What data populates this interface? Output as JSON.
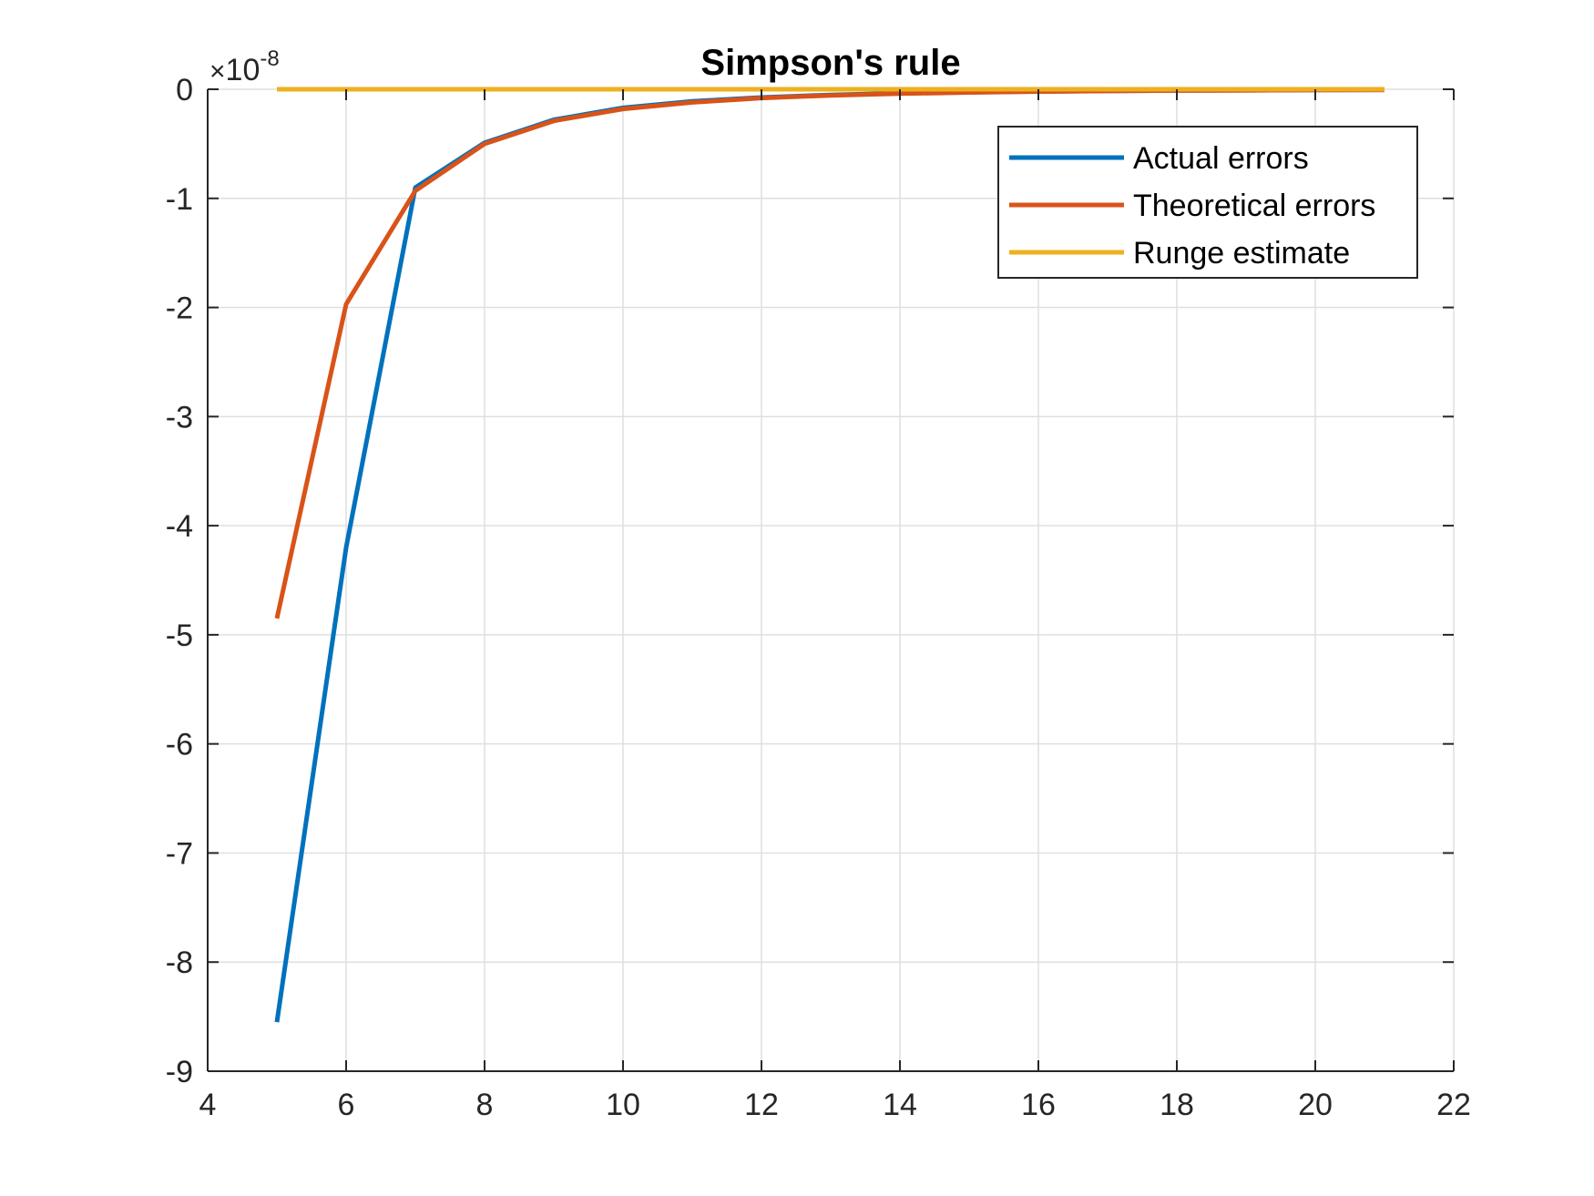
{
  "chart_data": {
    "type": "line",
    "title": "Simpson's rule",
    "xlabel": "",
    "ylabel": "",
    "y_multiplier": {
      "base": "10",
      "exponent": "-8"
    },
    "xlim": [
      4,
      22
    ],
    "ylim": [
      -9,
      0
    ],
    "xticks": [
      "4",
      "6",
      "8",
      "10",
      "12",
      "14",
      "16",
      "18",
      "20",
      "22"
    ],
    "yticks": [
      "-9",
      "-8",
      "-7",
      "-6",
      "-5",
      "-4",
      "-3",
      "-2",
      "-1",
      "0"
    ],
    "grid": true,
    "legend_position": "top-right",
    "series": [
      {
        "name": "Actual errors",
        "color": "#0072BD",
        "x": [
          5,
          6,
          7,
          8,
          9,
          10,
          11,
          12,
          13,
          14,
          15,
          16,
          17,
          18,
          19,
          20,
          21
        ],
        "y": [
          -8.55,
          -4.2,
          -0.9,
          -0.49,
          -0.28,
          -0.17,
          -0.11,
          -0.075,
          -0.052,
          -0.037,
          -0.027,
          -0.02,
          -0.015,
          -0.011,
          -0.009,
          -0.007,
          -0.005
        ]
      },
      {
        "name": "Theoretical errors",
        "color": "#D95319",
        "x": [
          5,
          6,
          7,
          8,
          9,
          10,
          11,
          12,
          13,
          14,
          15,
          16,
          17,
          18,
          19,
          20,
          21
        ],
        "y": [
          -4.85,
          -1.97,
          -0.93,
          -0.5,
          -0.29,
          -0.18,
          -0.12,
          -0.08,
          -0.056,
          -0.04,
          -0.029,
          -0.021,
          -0.016,
          -0.012,
          -0.009,
          -0.007,
          -0.005
        ]
      },
      {
        "name": "Runge estimate",
        "color": "#EDB120",
        "x": [
          5,
          6,
          7,
          8,
          9,
          10,
          11,
          12,
          13,
          14,
          15,
          16,
          17,
          18,
          19,
          20,
          21
        ],
        "y": [
          0,
          0,
          0,
          0,
          0,
          0,
          0,
          0,
          0,
          0,
          0,
          0,
          0,
          0,
          0,
          0,
          0
        ]
      }
    ]
  }
}
